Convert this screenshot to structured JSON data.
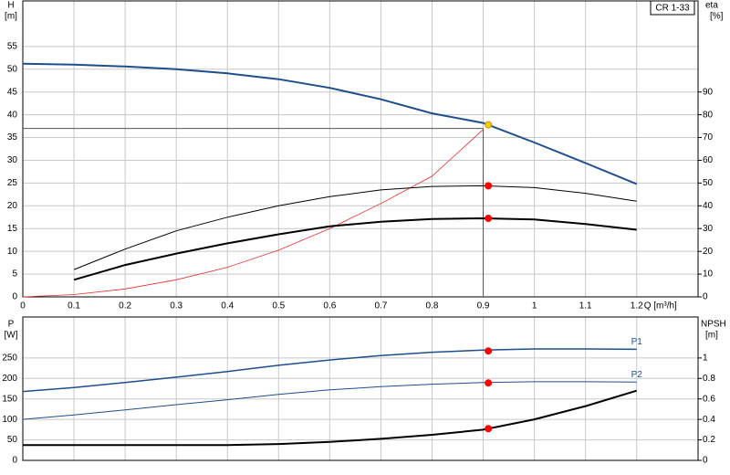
{
  "chart_data": [
    {
      "type": "line",
      "title": "CR 1-33",
      "xlabel": "Q [m³/h]",
      "ylabel": "H",
      "yunit": "[m]",
      "y2label": "eta",
      "y2unit": "[%]",
      "x": [
        0,
        0.1,
        0.2,
        0.3,
        0.4,
        0.5,
        0.6,
        0.7,
        0.8,
        0.9,
        1.0,
        1.1,
        1.2
      ],
      "xlim": [
        0,
        1.32
      ],
      "xticks": [
        0,
        0.1,
        0.2,
        0.3,
        0.4,
        0.5,
        0.6,
        0.7,
        0.8,
        0.9,
        1.0,
        1.1,
        1.2
      ],
      "ylim": [
        0,
        65
      ],
      "yticks": [
        0,
        5,
        10,
        15,
        20,
        25,
        30,
        35,
        40,
        45,
        50,
        55
      ],
      "y2lim": [
        0,
        130
      ],
      "y2ticks": [
        0,
        10,
        20,
        30,
        40,
        50,
        60,
        70,
        80,
        90
      ],
      "grid": true,
      "series": [
        {
          "color": "#1f4e8c",
          "width": 2,
          "values": [
            51.2,
            51,
            50.6,
            50,
            49.1,
            47.8,
            45.9,
            43.4,
            40.3,
            38.2,
            33.9,
            29.4,
            24.8
          ]
        },
        {
          "color": "#e03030",
          "width": 0.8,
          "axis": "y2",
          "values": [
            0,
            1,
            3.5,
            7.5,
            13,
            20.5,
            30,
            41,
            53,
            73.5,
            null,
            null,
            null
          ]
        },
        {
          "color": "#000000",
          "width": 1,
          "axis": "y2",
          "values": [
            null,
            12,
            21,
            29,
            35,
            40,
            44,
            47,
            48.5,
            48.8,
            48,
            45.5,
            42
          ]
        },
        {
          "color": "#000000",
          "width": 2,
          "axis": "y2",
          "values": [
            null,
            7.5,
            14,
            19,
            23.5,
            27.5,
            31,
            33,
            34.2,
            34.5,
            34,
            32,
            29.5
          ]
        }
      ],
      "crosshair": {
        "x": 0.9,
        "y": 37
      },
      "markers": [
        {
          "x": 0.91,
          "y": 37.8,
          "color": "#ffcc00"
        },
        {
          "x": 0.91,
          "y": 48.8,
          "color": "#ff0000",
          "axis": "y2"
        },
        {
          "x": 0.91,
          "y": 34.5,
          "color": "#ff0000",
          "axis": "y2"
        }
      ]
    },
    {
      "type": "line",
      "ylabel": "P",
      "yunit": "[W]",
      "y2label": "NPSH",
      "y2unit": "[m]",
      "x": [
        0,
        0.1,
        0.2,
        0.3,
        0.4,
        0.5,
        0.6,
        0.7,
        0.8,
        0.9,
        1.0,
        1.1,
        1.2
      ],
      "xlim": [
        0,
        1.32
      ],
      "xticks": [
        0,
        0.1,
        0.2,
        0.3,
        0.4,
        0.5,
        0.6,
        0.7,
        0.8,
        0.9,
        1.0,
        1.1,
        1.2
      ],
      "ylim": [
        0,
        350
      ],
      "yticks": [
        0,
        50,
        100,
        150,
        200,
        250
      ],
      "y2lim": [
        0,
        1.4
      ],
      "y2ticks": [
        0,
        0.2,
        0.4,
        0.6,
        0.8,
        1.0
      ],
      "grid": true,
      "series": [
        {
          "name": "P1",
          "color": "#1f4e8c",
          "width": 1.5,
          "values": [
            168,
            178,
            190,
            203,
            217,
            232,
            245,
            256,
            264,
            269,
            272,
            272,
            271
          ]
        },
        {
          "name": "P2",
          "color": "#1f4e8c",
          "width": 1,
          "values": [
            100,
            111,
            123,
            136,
            148,
            161,
            172,
            180,
            186,
            190,
            192,
            192,
            191
          ]
        },
        {
          "color": "#000000",
          "width": 2,
          "axis": "y2",
          "values": [
            0.15,
            0.15,
            0.15,
            0.15,
            0.15,
            0.16,
            0.18,
            0.21,
            0.25,
            0.3,
            0.4,
            0.53,
            0.68
          ]
        }
      ],
      "markers": [
        {
          "x": 0.91,
          "y": 267,
          "color": "#ff0000"
        },
        {
          "x": 0.91,
          "y": 189,
          "color": "#ff0000"
        },
        {
          "x": 0.91,
          "y": 0.31,
          "color": "#ff0000",
          "axis": "y2"
        }
      ]
    }
  ]
}
